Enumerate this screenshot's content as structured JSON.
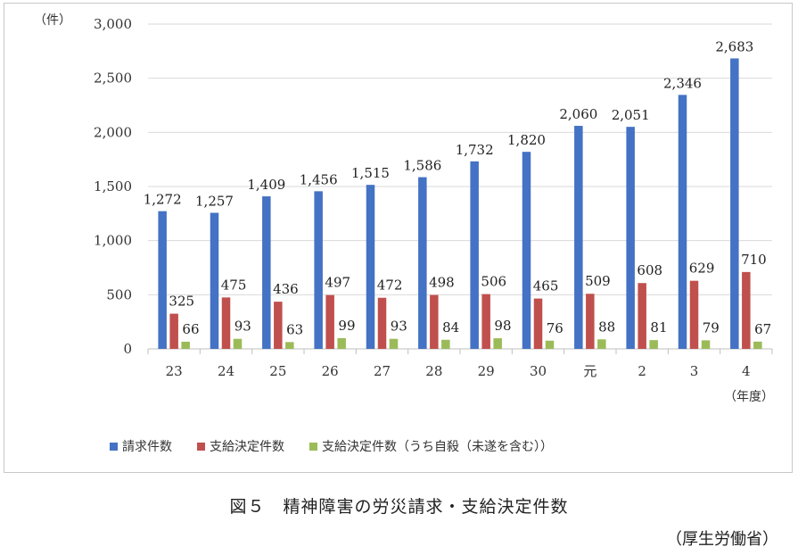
{
  "unit_label": "（件）",
  "x_unit_label": "（年度）",
  "caption": "図５　精神障害の労災請求・支給決定件数",
  "source": "（厚生労働省）",
  "colors": {
    "series1": "#4472C4",
    "series2": "#C0504D",
    "series3": "#9BBB59",
    "axis": "#bfbfbf",
    "grid": "#d9d9d9"
  },
  "chart_data": {
    "type": "bar",
    "categories": [
      "23",
      "24",
      "25",
      "26",
      "27",
      "28",
      "29",
      "30",
      "元",
      "2",
      "3",
      "4"
    ],
    "series": [
      {
        "name": "請求件数",
        "values": [
          1272,
          1257,
          1409,
          1456,
          1515,
          1586,
          1732,
          1820,
          2060,
          2051,
          2346,
          2683
        ]
      },
      {
        "name": "支給決定件数",
        "values": [
          325,
          475,
          436,
          497,
          472,
          498,
          506,
          465,
          509,
          608,
          629,
          710
        ]
      },
      {
        "name": "支給決定件数（うち自殺（未遂を含む））",
        "values": [
          66,
          93,
          63,
          99,
          93,
          84,
          98,
          76,
          88,
          81,
          79,
          67
        ]
      }
    ],
    "ylim": [
      0,
      3000
    ],
    "yticks": [
      "0",
      "500",
      "1,000",
      "1,500",
      "2,000",
      "2,500",
      "3,000"
    ],
    "grid": true,
    "legend": "bottom"
  }
}
